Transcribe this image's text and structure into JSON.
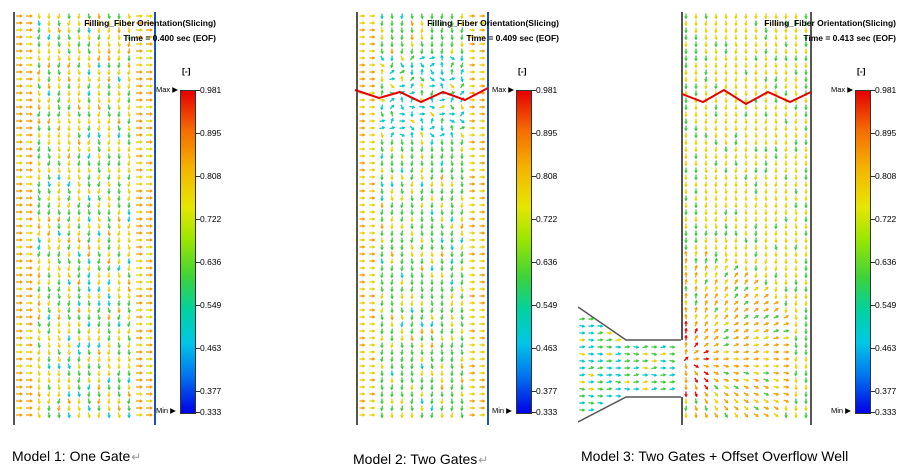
{
  "panels": [
    {
      "title": "Filling_Fiber Orientation(Slicing)",
      "time": "Time = 0.400 sec (EOF)",
      "unit": "[-]",
      "max_label": "Max",
      "min_label": "Min",
      "caption": "Model 1: One Gate",
      "layout": "single-gate"
    },
    {
      "title": "Filling_Fiber Orientation(Slicing)",
      "time": "Time = 0.409 sec (EOF)",
      "unit": "[-]",
      "max_label": "Max",
      "min_label": "Min",
      "caption": "Model 2: Two Gates",
      "layout": "two-gates"
    },
    {
      "title": "Filling_Fiber Orientation(Slicing)",
      "time": "Time = 0.413 sec (EOF)",
      "unit": "[-]",
      "max_label": "Max",
      "min_label": "Min",
      "caption": "Model 3: Two Gates + Offset Overflow Well",
      "layout": "overflow-well"
    }
  ],
  "colorbar_ticks": [
    "0.981",
    "0.895",
    "0.808",
    "0.722",
    "0.636",
    "0.549",
    "0.463",
    "0.377",
    "0.333"
  ],
  "return_glyph": "↵",
  "colors": {
    "yellow": "#e6d200",
    "orange": "#f0a000",
    "green": "#3cc83c",
    "cyan": "#00c8c8",
    "red": "#e60000",
    "wall_blue": "#1e50b4"
  }
}
